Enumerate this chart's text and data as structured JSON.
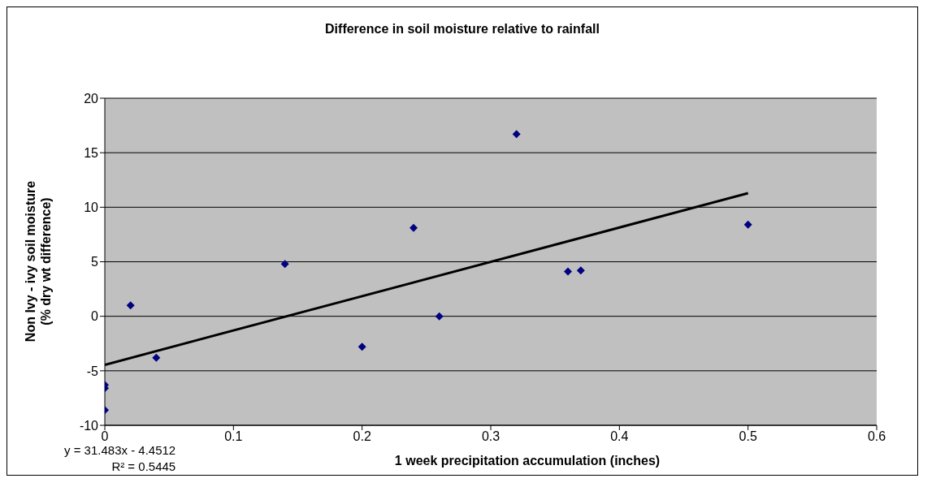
{
  "chart_data": {
    "type": "scatter",
    "title": "Difference in soil moisture relative to rainfall",
    "xlabel": "1 week precipitation accumulation (inches)",
    "ylabel": "Non Ivy - ivy soil moisture\n(% dry wt difference)",
    "x": [
      0,
      0,
      0,
      0.02,
      0.04,
      0.14,
      0.2,
      0.24,
      0.26,
      0.32,
      0.36,
      0.37,
      0.5
    ],
    "series": [
      {
        "color": "#000080",
        "marker": "diamond",
        "values": [
          -6.3,
          -6.6,
          -8.6,
          1.0,
          -3.8,
          4.8,
          -2.8,
          8.1,
          0,
          16.7,
          4.1,
          4.2,
          8.4
        ]
      },
      {
        "type": "line",
        "color": "#000000",
        "marker": "none",
        "x": [
          0,
          0.5
        ],
        "values": [
          -4.45,
          11.29
        ]
      }
    ],
    "xlim": [
      0,
      0.6
    ],
    "xticks": [
      0,
      0.1,
      0.2,
      0.3,
      0.4,
      0.5,
      0.6
    ],
    "ylim": [
      -10,
      20
    ],
    "yticks": [
      -10,
      -5,
      0,
      5,
      10,
      15,
      20
    ],
    "grid": "y",
    "legend": false,
    "annotations": [
      "y = 31.483x - 4.4512",
      "R² = 0.5445"
    ]
  }
}
